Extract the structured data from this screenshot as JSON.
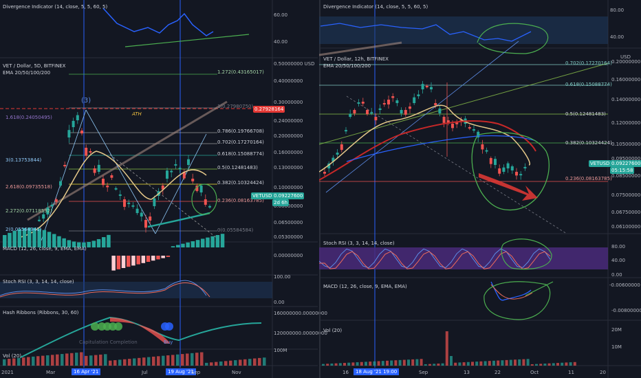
{
  "left": {
    "divergence_label": "Divergence Indicator (14, close, 5, 5, 60, 5)",
    "div_axis": [
      "60.00",
      "40.00"
    ],
    "title": "VET / Dollar, 5D, BITFINEX",
    "ema": "EMA 20/50/100/200",
    "wave_label": "(3)",
    "ath": "ATH",
    "price_axis": [
      "0.50000000 USD",
      "0.40000000",
      "0.30000000",
      "0.24000000",
      "0.20000000",
      "0.16000000",
      "0.13000000",
      "0.10000000",
      "0.08000000",
      "0.06500000",
      "0.05300000"
    ],
    "fib_right": [
      "1.272(0.43165017)",
      "1(0.27980750)",
      "0.786(0.19766708)",
      "0.702(0.17270164)",
      "0.618(0.15088774)",
      "0.5(0.12481483)",
      "0.382(0.10324424)",
      "0.236(0.08163785)",
      "0(0.05584584)"
    ],
    "fib_left": [
      "1.618(0.24050495)",
      "3(0.13753844)",
      "2.618(0.09735518)",
      "2.272(0.07118532)",
      "2(0.05564941)"
    ],
    "price_tag": "0.27928164",
    "vet_tag": "VETUSD",
    "vet_price": "0.09227600",
    "vet_time": "2d 6h",
    "macd_label": "MACD (12, 26, close, 9, EMA, EMA)",
    "macd_axis": [
      "0.00000000"
    ],
    "stoch_label": "Stoch RSI (3, 3, 14, 14, close)",
    "stoch_axis": [
      "100.00",
      "0.00"
    ],
    "hash_label": "Hash Ribbons (Ribbons, 30, 60)",
    "hash_axis": [
      "160000000.00000000",
      "120000000.00000000"
    ],
    "capitulation": "Capitulation Completion",
    "buy": "Buy",
    "vol_label": "Vol (20)",
    "vol_axis": [
      "100M"
    ],
    "dates": [
      "2021",
      "Mar",
      "Jul",
      "Sep",
      "Nov"
    ],
    "date_hl1": "16 Apr '21",
    "date_hl2": "19 Aug '21"
  },
  "right": {
    "divergence_label": "Divergence Indicator (14, close, 5, 5, 60, 5)",
    "div_axis": [
      "80.00",
      "40.00"
    ],
    "usd": "USD",
    "title": "VET / Dollar, 12h, BITFINEX",
    "ema": "EMA 20/50/100/200",
    "price_axis": [
      "0.20000000",
      "0.16000000",
      "0.14000000",
      "0.12000000",
      "0.10500000",
      "0.09500000",
      "0.08500000",
      "0.07500000",
      "0.06750000",
      "0.06100000"
    ],
    "fib": [
      "0.702(0.17270164)",
      "0.618(0.15088774)",
      "0.5(0.12481483)",
      "0.382(0.10324424)",
      "0.236(0.08163785)"
    ],
    "vet_tag": "VETUSD",
    "vet_price": "0.09227600",
    "vet_time": "05:15:58",
    "stoch_label": "Stoch RSI (3, 3, 14, 14, close)",
    "stoch_axis": [
      "80.00",
      "40.00",
      "0.00"
    ],
    "macd_label": "MACD (12, 26, close, 9, EMA, EMA)",
    "macd_axis": [
      "-0.00600000",
      "-0.00800000"
    ],
    "vol_label": "Vol (20)",
    "vol_axis": [
      "20M",
      "10M"
    ],
    "dates": [
      "Sep",
      "13",
      "22",
      "Oct",
      "11",
      "20"
    ],
    "date_hl": "18 Aug '21  19:00",
    "date_left": "16"
  },
  "colors": {
    "bg": "#131722",
    "up": "#26a69a",
    "down": "#ef5350",
    "blue": "#2962ff",
    "green_ann": "#4caf50",
    "red_ann": "#e53935",
    "stoch_bg": "#4a2a7a"
  }
}
